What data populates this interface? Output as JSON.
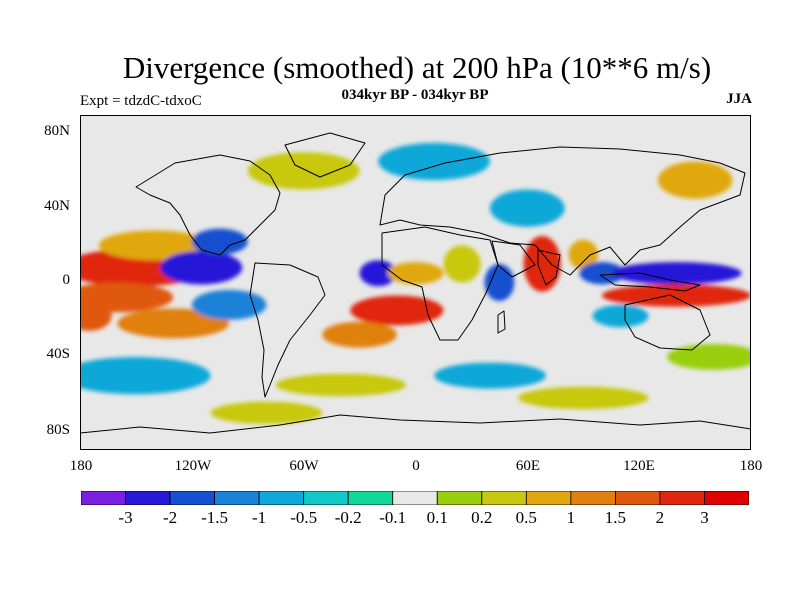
{
  "title": "Divergence (smoothed) at 200 hPa (10**6 m/s)",
  "subtitle": "034kyr BP - 034kyr BP",
  "experiment": "Expt = tdzdC-tdxoC",
  "season": "JJA",
  "y_ticks": [
    "80N",
    "40N",
    "0",
    "40S",
    "80S"
  ],
  "x_ticks": [
    "180",
    "120W",
    "60W",
    "0",
    "60E",
    "120E",
    "180"
  ],
  "colorbar": {
    "colors": [
      "#7a1ee0",
      "#2818d8",
      "#1450d0",
      "#1a82d8",
      "#10a8d8",
      "#10c8c8",
      "#10d898",
      "#e8e8e8",
      "#98d010",
      "#c8c810",
      "#e0a810",
      "#e08010",
      "#e05810",
      "#e02810",
      "#e00000"
    ],
    "labels": [
      "-3",
      "-2",
      "-1.5",
      "-1",
      "-0.5",
      "-0.2",
      "-0.1",
      "0.1",
      "0.2",
      "0.5",
      "1",
      "1.5",
      "2",
      "3"
    ]
  },
  "map_data": {
    "type": "filled_contour_map",
    "projection": "cylindrical_equidistant",
    "lon_range": [
      -180,
      180
    ],
    "lat_range": [
      -90,
      90
    ],
    "features": [
      {
        "lon": -150,
        "lat": 8,
        "w": 40,
        "h": 10,
        "c": 13
      },
      {
        "lon": -160,
        "lat": -8,
        "w": 30,
        "h": 8,
        "c": 12
      },
      {
        "lon": -140,
        "lat": 20,
        "w": 30,
        "h": 8,
        "c": 10
      },
      {
        "lon": -115,
        "lat": 8,
        "w": 22,
        "h": 9,
        "c": 1
      },
      {
        "lon": -105,
        "lat": 22,
        "w": 15,
        "h": 7,
        "c": 2
      },
      {
        "lon": -130,
        "lat": -22,
        "w": 30,
        "h": 8,
        "c": 11
      },
      {
        "lon": -175,
        "lat": -18,
        "w": 12,
        "h": 8,
        "c": 12
      },
      {
        "lon": -100,
        "lat": -12,
        "w": 20,
        "h": 8,
        "c": 3
      },
      {
        "lon": -20,
        "lat": 5,
        "w": 10,
        "h": 7,
        "c": 1
      },
      {
        "lon": -10,
        "lat": -15,
        "w": 25,
        "h": 8,
        "c": 13
      },
      {
        "lon": -30,
        "lat": -28,
        "w": 20,
        "h": 7,
        "c": 11
      },
      {
        "lon": 0,
        "lat": 5,
        "w": 15,
        "h": 6,
        "c": 10
      },
      {
        "lon": 25,
        "lat": 10,
        "w": 10,
        "h": 10,
        "c": 9
      },
      {
        "lon": 45,
        "lat": 0,
        "w": 8,
        "h": 10,
        "c": 2
      },
      {
        "lon": 68,
        "lat": 10,
        "w": 10,
        "h": 15,
        "c": 13
      },
      {
        "lon": 90,
        "lat": 15,
        "w": 8,
        "h": 8,
        "c": 10
      },
      {
        "lon": 100,
        "lat": 5,
        "w": 12,
        "h": 6,
        "c": 2
      },
      {
        "lon": 140,
        "lat": 5,
        "w": 35,
        "h": 6,
        "c": 1
      },
      {
        "lon": 140,
        "lat": -7,
        "w": 40,
        "h": 6,
        "c": 13
      },
      {
        "lon": 110,
        "lat": -18,
        "w": 15,
        "h": 6,
        "c": 4
      },
      {
        "lon": -60,
        "lat": 60,
        "w": 30,
        "h": 10,
        "c": 9
      },
      {
        "lon": 10,
        "lat": 65,
        "w": 30,
        "h": 10,
        "c": 4
      },
      {
        "lon": 60,
        "lat": 40,
        "w": 20,
        "h": 10,
        "c": 4
      },
      {
        "lon": 150,
        "lat": 55,
        "w": 20,
        "h": 10,
        "c": 10
      },
      {
        "lon": -150,
        "lat": -50,
        "w": 40,
        "h": 10,
        "c": 4
      },
      {
        "lon": -80,
        "lat": -70,
        "w": 30,
        "h": 6,
        "c": 9
      },
      {
        "lon": 40,
        "lat": -50,
        "w": 30,
        "h": 7,
        "c": 4
      },
      {
        "lon": 90,
        "lat": -62,
        "w": 35,
        "h": 6,
        "c": 9
      },
      {
        "lon": 160,
        "lat": -40,
        "w": 25,
        "h": 7,
        "c": 8
      },
      {
        "lon": -40,
        "lat": -55,
        "w": 35,
        "h": 6,
        "c": 9
      }
    ]
  }
}
